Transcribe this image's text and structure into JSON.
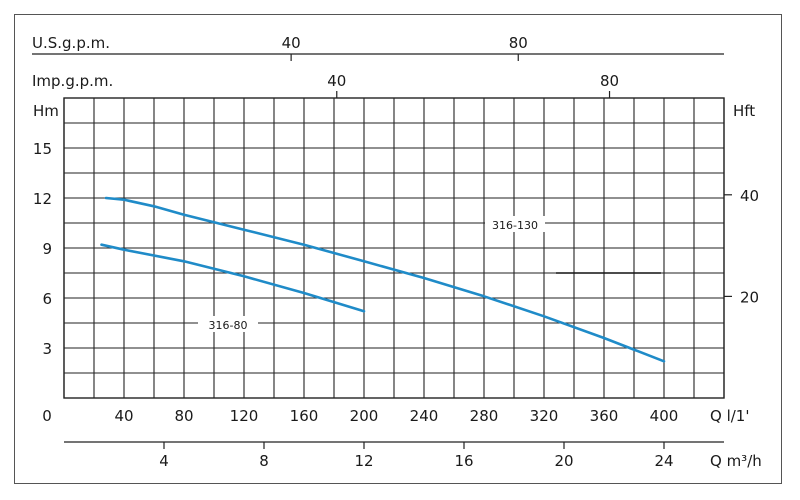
{
  "chart_data": {
    "type": "line",
    "axes": {
      "usgpm": {
        "label": "U.S.g.p.m.",
        "ticks": [
          40,
          80
        ]
      },
      "impgpm": {
        "label": "Imp.g.p.m.",
        "ticks": [
          40,
          80
        ]
      },
      "hm": {
        "label": "Hm",
        "ticks": [
          0,
          3,
          6,
          9,
          12,
          15
        ],
        "range": [
          0,
          18
        ]
      },
      "hft": {
        "label": "Hft",
        "ticks": [
          20,
          40
        ]
      },
      "q_lmin": {
        "label": "Q l/1'",
        "ticks": [
          40,
          80,
          120,
          160,
          200,
          240,
          280,
          320,
          360,
          400
        ],
        "range": [
          0,
          440
        ]
      },
      "q_m3h": {
        "label": "Q m³/h",
        "ticks": [
          4,
          8,
          12,
          16,
          20,
          24
        ]
      }
    },
    "grid": true,
    "series": [
      {
        "name": "316-130",
        "color": "#1f8bc8",
        "x": [
          28,
          40,
          60,
          80,
          120,
          160,
          200,
          240,
          280,
          320,
          360,
          400
        ],
        "y": [
          12.0,
          11.9,
          11.5,
          11.0,
          10.1,
          9.2,
          8.2,
          7.2,
          6.1,
          4.9,
          3.6,
          2.2
        ]
      },
      {
        "name": "316-80",
        "color": "#1f8bc8",
        "x": [
          25,
          40,
          80,
          120,
          160,
          200
        ],
        "y": [
          9.2,
          8.9,
          8.2,
          7.3,
          6.3,
          5.2
        ]
      }
    ]
  }
}
